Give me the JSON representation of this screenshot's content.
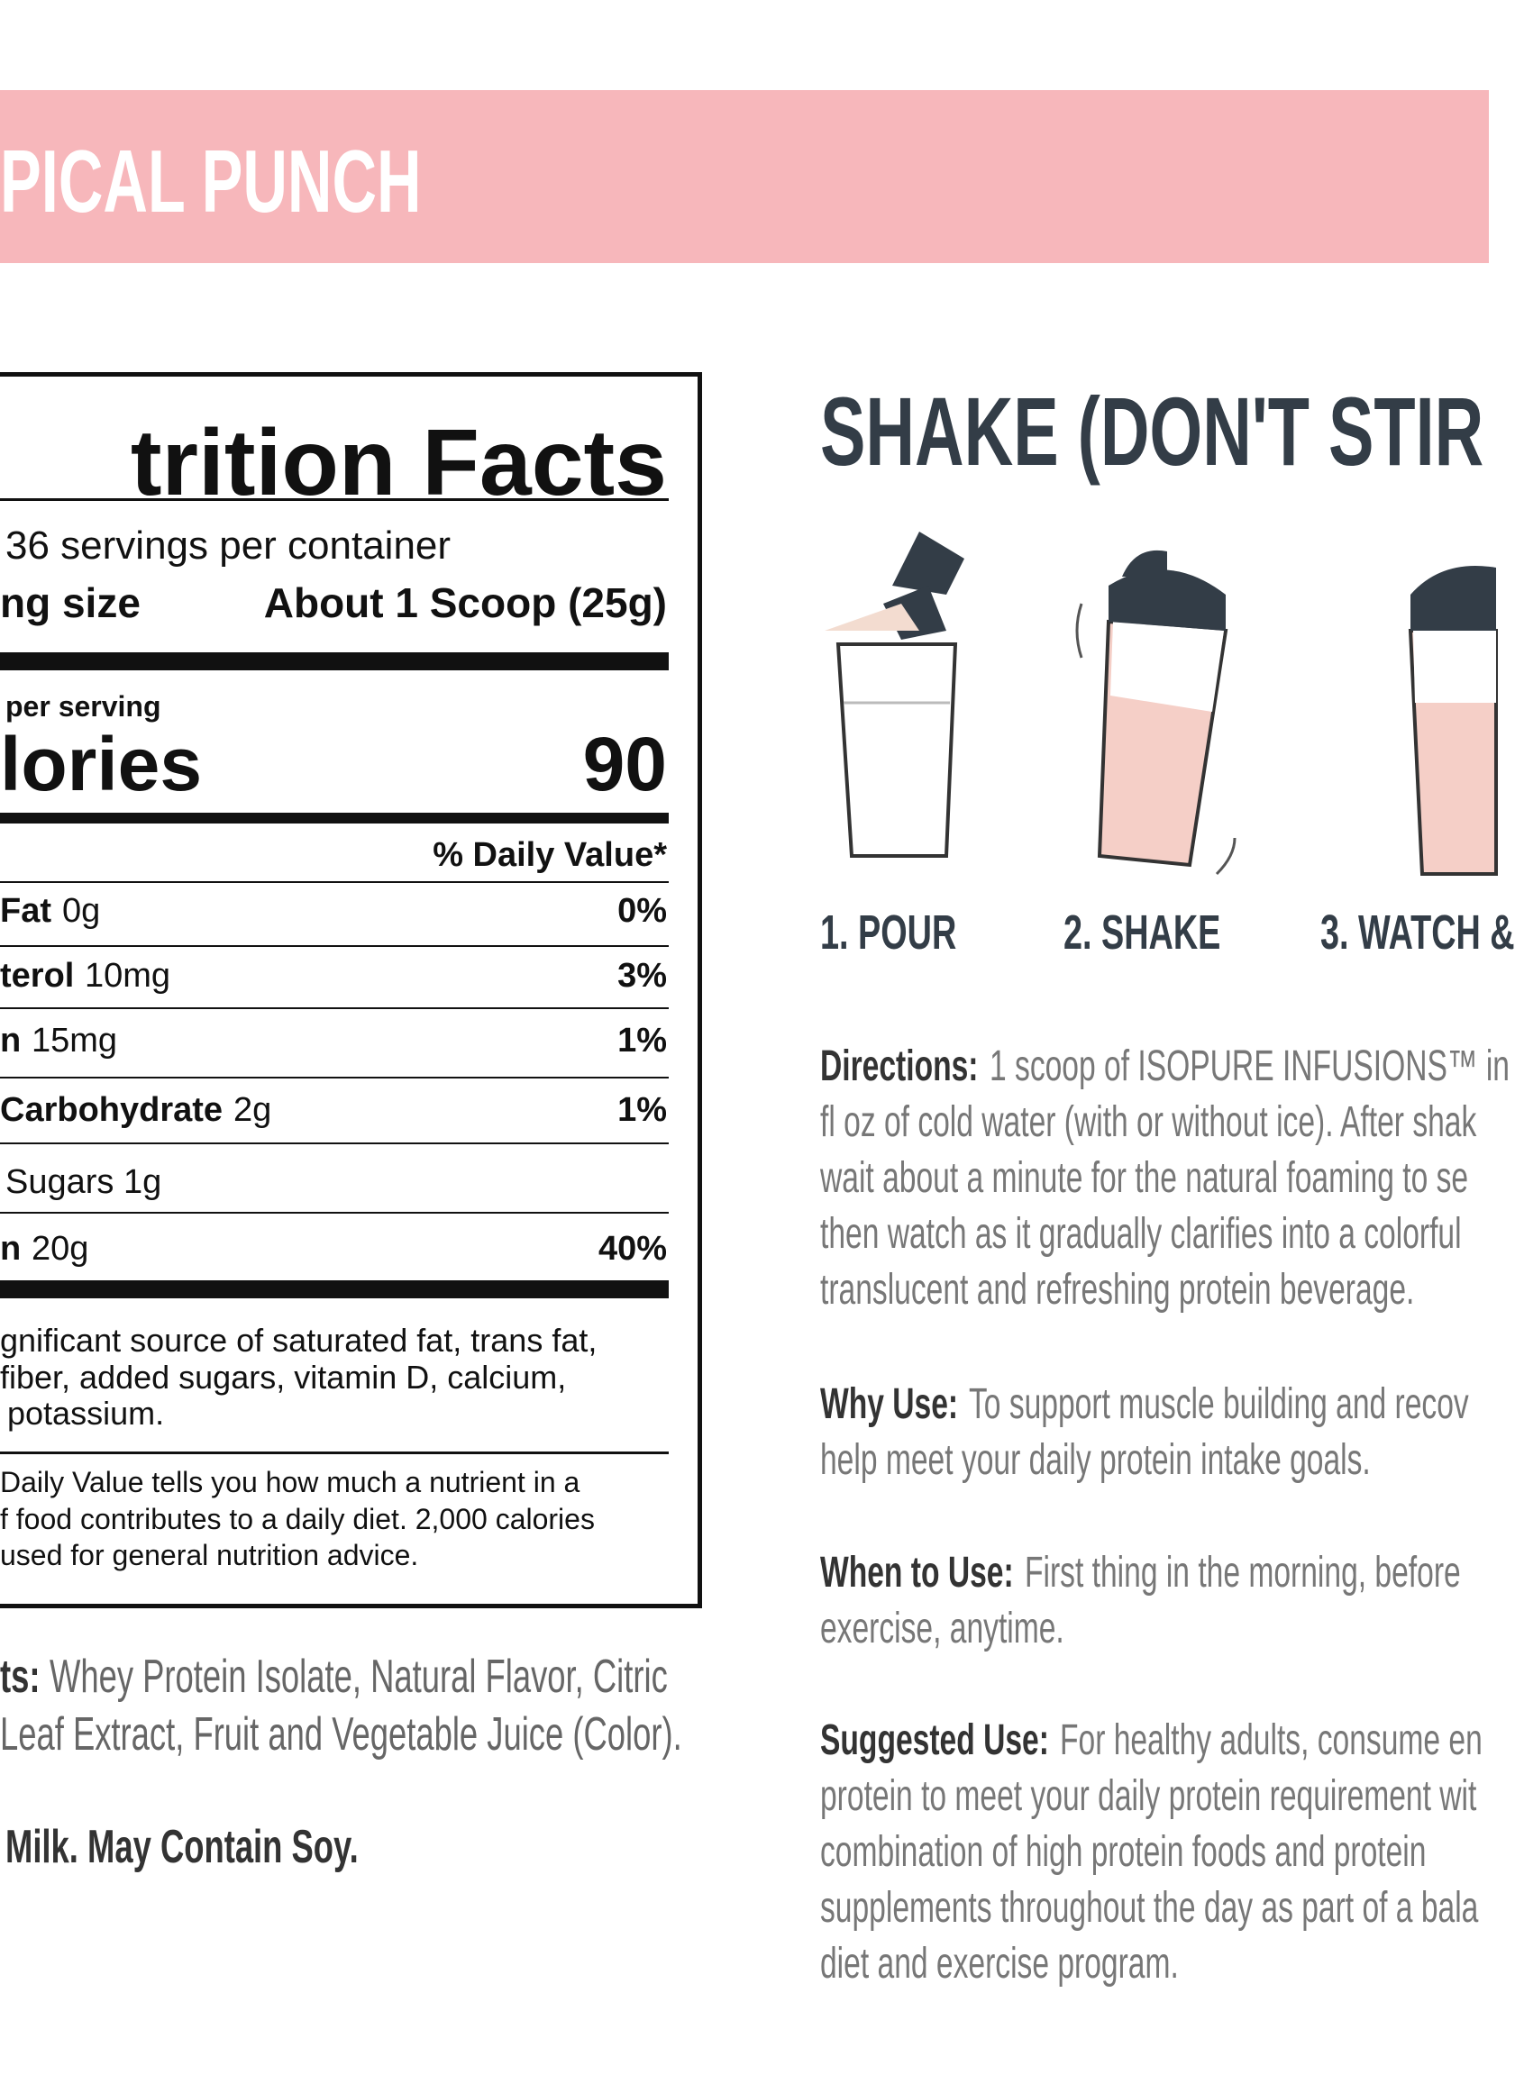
{
  "banner": {
    "title": "PICAL PUNCH"
  },
  "nutrition": {
    "title": "trition Facts",
    "servings": "36 servings per container",
    "serving_size_label": "ng size",
    "serving_size": "About 1 Scoop (25g)",
    "amount_label": "per serving",
    "calories_label": "lories",
    "calories": "90",
    "dv_header": "% Daily Value*",
    "rows": [
      {
        "name": "Fat",
        "amount": "0g",
        "dv": "0%"
      },
      {
        "name": "terol",
        "amount": "10mg",
        "dv": "3%"
      },
      {
        "name": "n",
        "amount": "15mg",
        "dv": "1%"
      },
      {
        "name": "Carbohydrate",
        "amount": "2g",
        "dv": "1%"
      },
      {
        "amount": "Sugars 1g"
      },
      {
        "name": "n",
        "amount": "20g",
        "dv": "40%"
      }
    ],
    "not_significant": [
      "gnificant source of saturated fat, trans fat,",
      "fiber, added sugars, vitamin D, calcium,",
      "potassium."
    ],
    "footnote": [
      "Daily Value tells you how much a nutrient in a",
      "f food contributes to a daily diet. 2,000 calories",
      "used for general nutrition advice."
    ]
  },
  "ingredients": {
    "label": "ts:",
    "lines": [
      "Whey Protein Isolate, Natural Flavor, Citric",
      "Leaf Extract, Fruit and Vegetable Juice (Color)."
    ]
  },
  "allergen": "Milk. May Contain Soy.",
  "shake": {
    "heading": "SHAKE (DON'T STIR",
    "steps": [
      "1. POUR",
      "2. SHAKE",
      "3. WATCH &"
    ]
  },
  "sections": [
    {
      "label": "Directions:",
      "lines": [
        "1 scoop of ISOPURE INFUSIONS™ in",
        "fl oz of cold water (with or without ice). After shak",
        "wait about a minute for the natural foaming to se",
        "then watch as it gradually clarifies into a colorful",
        "translucent and refreshing protein beverage."
      ]
    },
    {
      "label": "Why Use:",
      "lines": [
        "To support muscle building and recov",
        "help meet your daily protein intake goals."
      ]
    },
    {
      "label": "When to Use:",
      "lines": [
        "First thing in the morning, before",
        "exercise, anytime."
      ]
    },
    {
      "label": "Suggested Use:",
      "lines": [
        "For healthy adults, consume en",
        "protein to meet your daily protein requirement wit",
        "combination of high protein foods and protein",
        "supplements throughout the day as part of a bala",
        "diet and exercise program."
      ]
    }
  ]
}
